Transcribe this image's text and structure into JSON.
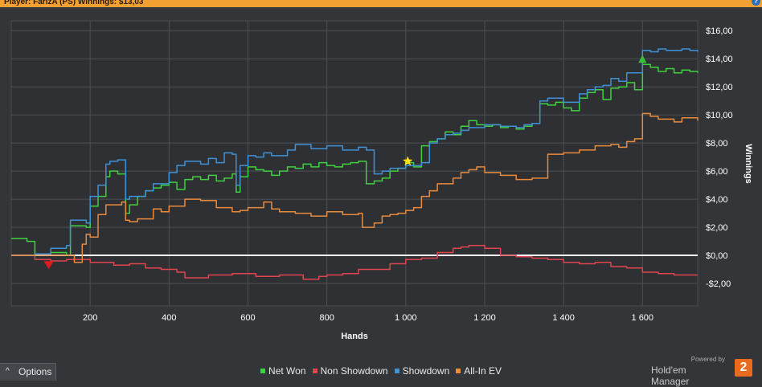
{
  "header": {
    "text": "Player: FarizA (PS)  Winnings: $13,03"
  },
  "help_label": "?",
  "options": {
    "label": "Options",
    "chevron": "^"
  },
  "brand": {
    "powered": "Powered by",
    "name": "Hold'em Manager",
    "logo": "2"
  },
  "chart_data": {
    "type": "line",
    "xlabel": "Hands",
    "ylabel": "Winnings",
    "xlim": [
      0,
      1740
    ],
    "ylim": [
      -3.6,
      16.7
    ],
    "x_ticks": [
      200,
      400,
      600,
      800,
      1000,
      1200,
      1400,
      1600
    ],
    "x_tick_labels": [
      "200",
      "400",
      "600",
      "800",
      "1 000",
      "1 200",
      "1 400",
      "1 600"
    ],
    "y_ticks": [
      -2,
      0,
      2,
      4,
      6,
      8,
      10,
      12,
      14,
      16
    ],
    "y_tick_labels": [
      "-$2,00",
      "$0,00",
      "$2,00",
      "$4,00",
      "$6,00",
      "$8,00",
      "$10,00",
      "$12,00",
      "$14,00",
      "$16,00"
    ],
    "grid": true,
    "legend_position": "bottom-center",
    "series": [
      {
        "name": "Net Won",
        "color": "#3fd13f",
        "x": [
          0,
          40,
          60,
          100,
          140,
          150,
          190,
          200,
          220,
          240,
          250,
          270,
          290,
          300,
          320,
          340,
          360,
          380,
          400,
          420,
          440,
          460,
          480,
          500,
          520,
          540,
          560,
          570,
          580,
          600,
          620,
          640,
          660,
          680,
          700,
          720,
          740,
          760,
          780,
          800,
          820,
          840,
          860,
          880,
          900,
          920,
          940,
          960,
          980,
          1000,
          1020,
          1040,
          1060,
          1080,
          1100,
          1120,
          1140,
          1160,
          1180,
          1200,
          1220,
          1240,
          1260,
          1280,
          1300,
          1320,
          1340,
          1360,
          1380,
          1400,
          1420,
          1440,
          1460,
          1480,
          1500,
          1520,
          1540,
          1560,
          1580,
          1600,
          1620,
          1640,
          1660,
          1680,
          1700,
          1720,
          1740
        ],
        "y": [
          1.2,
          1.0,
          0.1,
          0.2,
          0.0,
          2.1,
          2.0,
          3.5,
          4.2,
          5.6,
          6.0,
          5.8,
          3.0,
          3.6,
          4.2,
          4.6,
          4.8,
          5.0,
          5.2,
          4.7,
          5.4,
          5.6,
          5.4,
          5.7,
          5.3,
          5.5,
          5.8,
          4.5,
          5.6,
          6.3,
          6.1,
          6.0,
          5.7,
          6.0,
          6.3,
          6.2,
          6.5,
          6.3,
          6.6,
          6.4,
          6.3,
          6.5,
          6.6,
          6.7,
          5.1,
          5.3,
          5.5,
          6.0,
          6.2,
          6.6,
          6.3,
          7.8,
          8.1,
          8.3,
          8.8,
          8.6,
          9.2,
          9.6,
          9.3,
          9.2,
          9.3,
          9.1,
          9.2,
          9.0,
          9.2,
          9.4,
          10.8,
          10.7,
          10.9,
          10.5,
          10.3,
          11.2,
          11.6,
          11.8,
          11.1,
          11.9,
          12.0,
          12.3,
          11.8,
          13.6,
          13.4,
          13.1,
          13.3,
          13.0,
          13.2,
          13.1,
          13.0
        ]
      },
      {
        "name": "Non Showdown",
        "color": "#e0444e",
        "x": [
          0,
          40,
          60,
          100,
          140,
          200,
          260,
          300,
          340,
          380,
          420,
          440,
          500,
          560,
          620,
          680,
          720,
          740,
          780,
          800,
          840,
          880,
          920,
          960,
          1000,
          1040,
          1080,
          1120,
          1140,
          1160,
          1200,
          1240,
          1280,
          1320,
          1360,
          1400,
          1440,
          1480,
          1520,
          1560,
          1600,
          1640,
          1680,
          1740
        ],
        "y": [
          0.0,
          0.0,
          -0.3,
          -0.4,
          -0.3,
          -0.5,
          -0.7,
          -0.6,
          -0.9,
          -1.0,
          -1.2,
          -1.6,
          -1.4,
          -1.3,
          -1.5,
          -1.4,
          -1.4,
          -1.7,
          -1.5,
          -1.4,
          -1.3,
          -1.0,
          -1.0,
          -0.6,
          -0.3,
          -0.2,
          0.2,
          0.5,
          0.6,
          0.7,
          0.5,
          0.0,
          -0.1,
          -0.2,
          -0.3,
          -0.5,
          -0.6,
          -0.5,
          -0.8,
          -0.9,
          -1.2,
          -1.3,
          -1.4,
          -1.4
        ]
      },
      {
        "name": "Showdown",
        "color": "#3f91d8",
        "x": [
          0,
          60,
          100,
          140,
          150,
          190,
          200,
          220,
          240,
          250,
          270,
          290,
          300,
          340,
          360,
          400,
          420,
          440,
          480,
          500,
          520,
          540,
          560,
          570,
          580,
          600,
          620,
          640,
          660,
          700,
          720,
          760,
          800,
          840,
          880,
          900,
          920,
          940,
          960,
          1000,
          1040,
          1060,
          1080,
          1100,
          1120,
          1140,
          1160,
          1200,
          1240,
          1280,
          1300,
          1320,
          1340,
          1360,
          1400,
          1440,
          1460,
          1480,
          1500,
          1520,
          1540,
          1560,
          1600,
          1620,
          1640,
          1660,
          1680,
          1700,
          1720,
          1740
        ],
        "y": [
          0.0,
          0.1,
          0.5,
          0.7,
          2.5,
          2.3,
          4.2,
          5.0,
          6.5,
          6.7,
          6.8,
          4.0,
          4.2,
          4.6,
          5.1,
          5.9,
          6.4,
          6.7,
          6.5,
          6.9,
          6.6,
          7.3,
          7.2,
          5.0,
          6.4,
          7.1,
          7.0,
          7.3,
          7.1,
          7.5,
          7.9,
          7.6,
          7.8,
          7.5,
          7.7,
          7.5,
          5.8,
          6.0,
          6.2,
          6.4,
          6.6,
          8.0,
          8.3,
          8.6,
          8.7,
          8.9,
          9.1,
          9.3,
          9.2,
          9.1,
          9.3,
          9.4,
          11.0,
          11.2,
          10.9,
          11.5,
          11.8,
          12.0,
          12.1,
          12.6,
          12.4,
          13.0,
          14.6,
          14.5,
          14.7,
          14.6,
          14.6,
          14.7,
          14.6,
          14.5
        ]
      },
      {
        "name": "All-In EV",
        "color": "#e98b3e",
        "x": [
          0,
          60,
          100,
          160,
          180,
          190,
          200,
          220,
          240,
          280,
          290,
          300,
          320,
          360,
          380,
          400,
          440,
          480,
          520,
          560,
          580,
          600,
          640,
          660,
          680,
          720,
          760,
          800,
          840,
          880,
          890,
          900,
          920,
          940,
          960,
          980,
          1000,
          1020,
          1040,
          1060,
          1080,
          1120,
          1140,
          1160,
          1180,
          1200,
          1240,
          1280,
          1320,
          1360,
          1400,
          1440,
          1480,
          1520,
          1540,
          1560,
          1580,
          1600,
          1620,
          1640,
          1680,
          1700,
          1740
        ],
        "y": [
          0.0,
          0.0,
          0.0,
          -0.5,
          0.8,
          1.5,
          1.3,
          2.9,
          3.6,
          3.8,
          2.5,
          2.4,
          2.6,
          3.3,
          3.1,
          3.5,
          4.0,
          3.9,
          3.4,
          3.1,
          3.2,
          3.4,
          3.8,
          3.3,
          3.1,
          3.0,
          2.8,
          3.1,
          2.9,
          3.0,
          2.0,
          2.0,
          2.3,
          2.8,
          2.9,
          3.0,
          3.2,
          3.4,
          4.2,
          4.6,
          5.1,
          5.5,
          5.9,
          6.1,
          6.3,
          5.9,
          5.7,
          5.4,
          5.5,
          7.2,
          7.3,
          7.5,
          7.8,
          7.9,
          7.7,
          8.1,
          8.3,
          10.1,
          9.9,
          9.7,
          9.5,
          9.8,
          9.6
        ]
      }
    ],
    "markers": [
      {
        "type": "star",
        "x": 1005,
        "y": 6.7,
        "color": "#ffe019"
      },
      {
        "type": "triangle-down",
        "x": 95,
        "y": -0.7,
        "color": "#e01b1b"
      },
      {
        "type": "triangle-up",
        "x": 1600,
        "y": 14.0,
        "color": "#39c239"
      }
    ]
  }
}
